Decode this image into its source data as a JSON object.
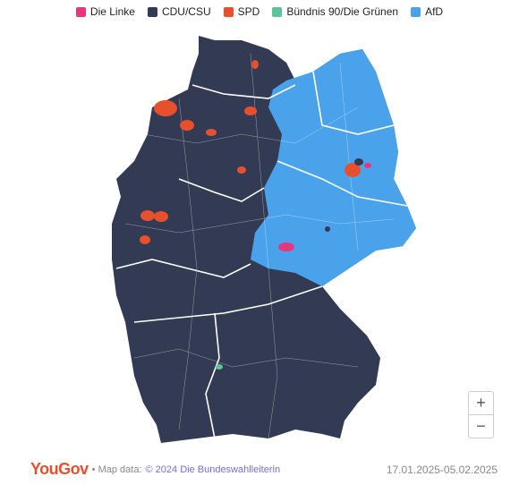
{
  "legend": {
    "items": [
      {
        "label": "Die Linke",
        "color": "#e8357c"
      },
      {
        "label": "CDU/CSU",
        "color": "#323b53"
      },
      {
        "label": "SPD",
        "color": "#e7502d"
      },
      {
        "label": "Bündnis 90/Die Grünen",
        "color": "#5cc49a"
      },
      {
        "label": "AfD",
        "color": "#4aa3ea"
      }
    ]
  },
  "zoom": {
    "in": "+",
    "out": "−"
  },
  "footer": {
    "brand": "YouGov",
    "source_label": "• Map data:",
    "source": "© 2024 Die Bundeswahlleiterin",
    "dates": "17.01.2025-05.02.2025"
  }
}
